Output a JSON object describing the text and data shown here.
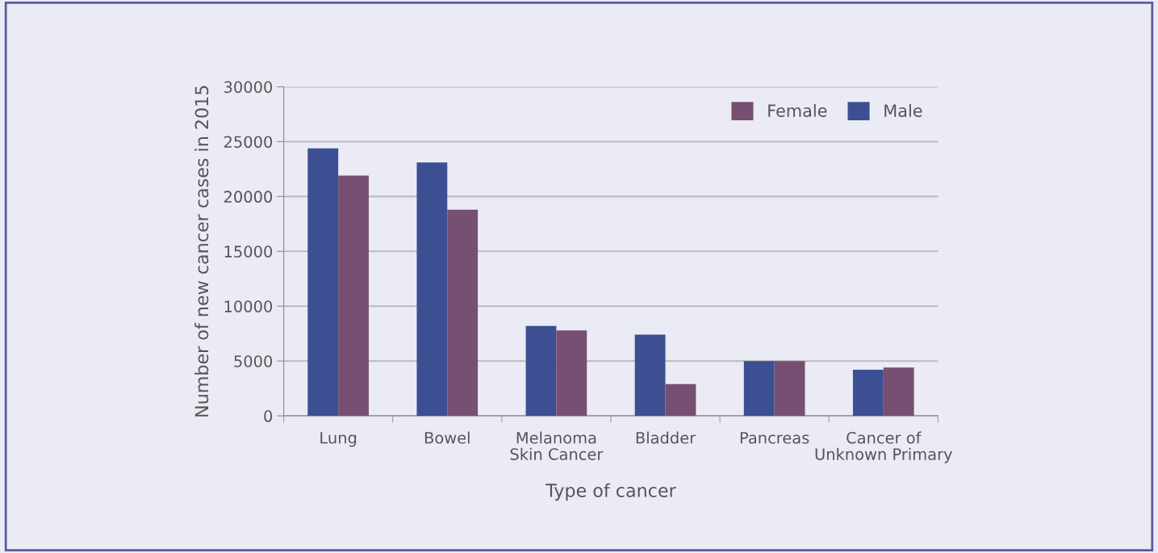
{
  "chart_data": {
    "type": "bar",
    "xlabel": "Type of cancer",
    "ylabel": "Number of new cancer cases in 2015",
    "categories": [
      "Lung",
      "Bowel",
      "Melanoma\nSkin Cancer",
      "Bladder",
      "Pancreas",
      "Cancer of\nUnknown Primary"
    ],
    "series": [
      {
        "name": "Male",
        "color": "#3c4f92",
        "values": [
          24400,
          23100,
          8200,
          7400,
          5000,
          4200
        ]
      },
      {
        "name": "Female",
        "color": "#774f72",
        "values": [
          21900,
          18800,
          7800,
          2900,
          5000,
          4400
        ]
      }
    ],
    "ylim": [
      0,
      30000
    ],
    "yticks": [
      0,
      5000,
      10000,
      15000,
      20000,
      25000,
      30000
    ],
    "grid": "y",
    "legend": "top right"
  }
}
